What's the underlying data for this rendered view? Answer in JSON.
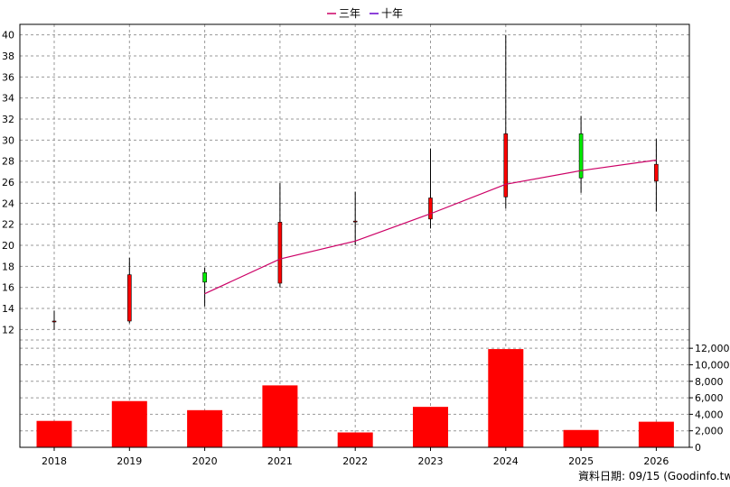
{
  "chart_data": {
    "type": "candlestick+bar",
    "legend": {
      "placement": "top-center",
      "items": [
        {
          "label": "三年",
          "color": "#cc0066"
        },
        {
          "label": "十年",
          "color": "#6600cc"
        }
      ]
    },
    "x": [
      "2018",
      "2019",
      "2020",
      "2021",
      "2022",
      "2023",
      "2024",
      "2025",
      "2026"
    ],
    "price_axis": {
      "ylim": [
        11,
        41
      ],
      "ticks": [
        "12",
        "14",
        "16",
        "18",
        "20",
        "22",
        "24",
        "26",
        "28",
        "30",
        "32",
        "34",
        "36",
        "38",
        "40"
      ]
    },
    "volume_axis": {
      "ylim": [
        0,
        13000
      ],
      "ticks": [
        "0",
        "2,000",
        "4,000",
        "6,000",
        "8,000",
        "10,000",
        "12,000"
      ]
    },
    "candles": [
      {
        "x": "2018",
        "open": 12.8,
        "high": 13.8,
        "low": 12.0,
        "close": 12.8
      },
      {
        "x": "2019",
        "open": 12.8,
        "high": 18.8,
        "low": 12.6,
        "close": 17.2
      },
      {
        "x": "2020",
        "open": 17.4,
        "high": 17.9,
        "low": 14.2,
        "close": 16.5
      },
      {
        "x": "2021",
        "open": 16.4,
        "high": 25.9,
        "low": 16.0,
        "close": 22.2
      },
      {
        "x": "2022",
        "open": 22.3,
        "high": 25.1,
        "low": 20.0,
        "close": 22.3
      },
      {
        "x": "2023",
        "open": 22.5,
        "high": 29.2,
        "low": 21.6,
        "close": 24.5
      },
      {
        "x": "2024",
        "open": 24.6,
        "high": 40.0,
        "low": 23.5,
        "close": 30.6
      },
      {
        "x": "2025",
        "open": 30.6,
        "high": 32.3,
        "low": 25.0,
        "close": 26.4
      },
      {
        "x": "2026",
        "open": 26.1,
        "high": 30.1,
        "low": 23.2,
        "close": 27.7
      }
    ],
    "series": [
      {
        "name": "三年",
        "color": "#cc0066",
        "points": [
          {
            "x": "2020",
            "y": 15.4
          },
          {
            "x": "2021",
            "y": 18.7
          },
          {
            "x": "2022",
            "y": 20.4
          },
          {
            "x": "2023",
            "y": 23.0
          },
          {
            "x": "2024",
            "y": 25.8
          },
          {
            "x": "2025",
            "y": 27.1
          },
          {
            "x": "2026",
            "y": 28.1
          }
        ]
      }
    ],
    "volume": [
      3200,
      5600,
      4500,
      7500,
      1800,
      4900,
      11900,
      2100,
      3100
    ],
    "colors": {
      "up": "#ff0000",
      "down": "#00ee00",
      "volume": "#ff0000",
      "grid": "#999999"
    },
    "grid": true
  },
  "source_note": "資料日期: 09/15 (Goodinfo.tw)"
}
